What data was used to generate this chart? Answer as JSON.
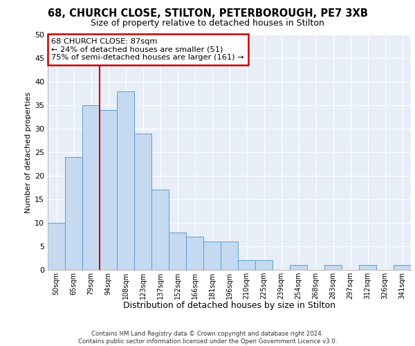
{
  "title1": "68, CHURCH CLOSE, STILTON, PETERBOROUGH, PE7 3XB",
  "title2": "Size of property relative to detached houses in Stilton",
  "xlabel": "Distribution of detached houses by size in Stilton",
  "ylabel": "Number of detached properties",
  "categories": [
    "50sqm",
    "65sqm",
    "79sqm",
    "94sqm",
    "108sqm",
    "123sqm",
    "137sqm",
    "152sqm",
    "166sqm",
    "181sqm",
    "196sqm",
    "210sqm",
    "225sqm",
    "239sqm",
    "254sqm",
    "268sqm",
    "283sqm",
    "297sqm",
    "312sqm",
    "326sqm",
    "341sqm"
  ],
  "values": [
    10,
    24,
    35,
    34,
    38,
    29,
    17,
    8,
    7,
    6,
    6,
    2,
    2,
    0,
    1,
    0,
    1,
    0,
    1,
    0,
    1
  ],
  "bar_color": "#c5d9f1",
  "bar_edge_color": "#5b9bd5",
  "vline_x": 2.5,
  "vline_color": "#cc0000",
  "annotation_text": "68 CHURCH CLOSE: 87sqm\n← 24% of detached houses are smaller (51)\n75% of semi-detached houses are larger (161) →",
  "annotation_box_color": "#ffffff",
  "annotation_box_edge": "#cc0000",
  "ylim": [
    0,
    50
  ],
  "yticks": [
    0,
    5,
    10,
    15,
    20,
    25,
    30,
    35,
    40,
    45,
    50
  ],
  "background_color": "#e8eef8",
  "footer_line1": "Contains HM Land Registry data © Crown copyright and database right 2024.",
  "footer_line2": "Contains public sector information licensed under the Open Government Licence v3.0."
}
